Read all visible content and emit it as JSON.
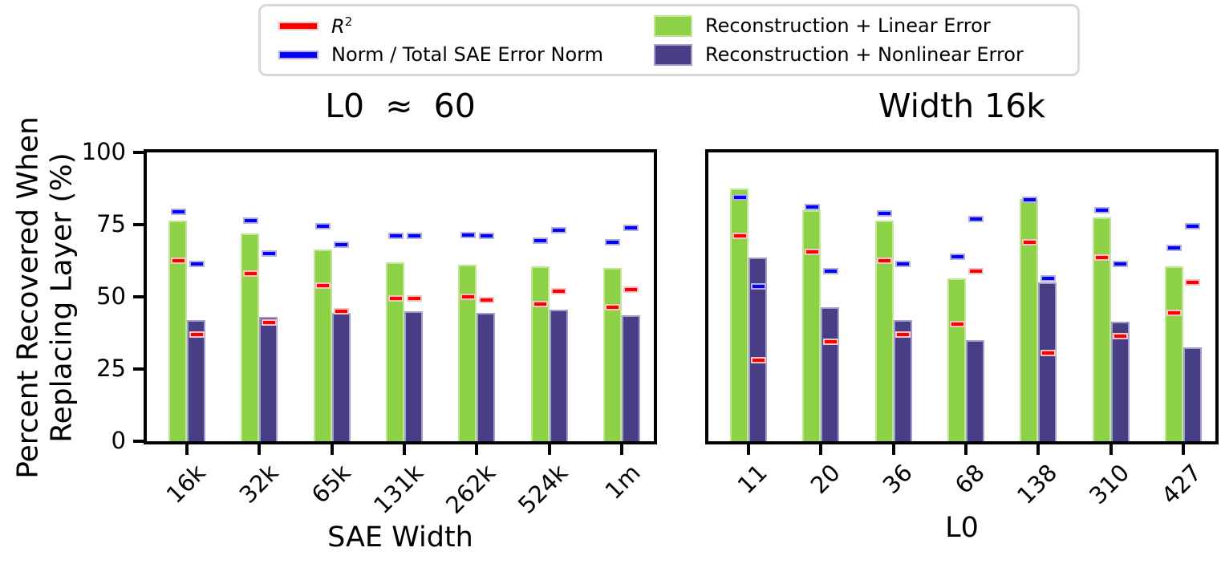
{
  "figure": {
    "ylabel_line1": "Percent Recovered When",
    "ylabel_line2": "Replacing Layer (%)"
  },
  "colors": {
    "linear_fill": "#8DD146",
    "linear_edge": "#C1E795",
    "nonlinear_fill": "#473E85",
    "nonlinear_edge": "#A29DCF",
    "r2": "#FC0000",
    "r2_edge": "#F6C2C2",
    "norm": "#0202F8",
    "norm_edge": "#B3AEE2",
    "legend_border": "#D8D8D8",
    "text": "#000000"
  },
  "legend": {
    "position": "top-center",
    "items": [
      {
        "key": "r2",
        "label": "R",
        "sup": "2",
        "italic": true,
        "swatch": "line",
        "color": "r2"
      },
      {
        "key": "norm",
        "label": "Norm / Total SAE Error Norm",
        "swatch": "line",
        "color": "norm"
      },
      {
        "key": "linear",
        "label": "Reconstruction + Linear Error",
        "swatch": "bar",
        "color": "linear"
      },
      {
        "key": "nonlinear",
        "label": "Reconstruction + Nonlinear Error",
        "swatch": "bar",
        "color": "nonlinear"
      }
    ]
  },
  "chart_data": [
    {
      "type": "bar",
      "title": "L0  ≈  60",
      "xlabel": "SAE Width",
      "ylabel": "Percent Recovered When Replacing Layer (%)",
      "categories": [
        "16k",
        "32k",
        "65k",
        "131k",
        "262k",
        "524k",
        "1m"
      ],
      "ylim": [
        0,
        100
      ],
      "yticks": [
        0,
        25,
        50,
        75,
        100
      ],
      "yticks_visible": true,
      "grid": false,
      "series": [
        {
          "name": "Reconstruction + Linear Error",
          "kind": "bar",
          "group": "linear",
          "values": [
            76.5,
            72,
            66.5,
            62,
            61,
            60.5,
            60
          ]
        },
        {
          "name": "Reconstruction + Nonlinear Error",
          "kind": "bar",
          "group": "nonlinear",
          "values": [
            42,
            43,
            44.5,
            45,
            44.5,
            45.5,
            43.5
          ]
        },
        {
          "name": "R²",
          "kind": "dash",
          "color": "r2",
          "group": "linear",
          "values": [
            62.5,
            58,
            54,
            49.5,
            50,
            47.5,
            46.5
          ]
        },
        {
          "name": "R²",
          "kind": "dash",
          "color": "r2",
          "group": "nonlinear",
          "values": [
            37,
            41,
            45,
            49.5,
            49,
            52,
            52.5
          ]
        },
        {
          "name": "Norm / Total SAE Error Norm",
          "kind": "dash",
          "color": "norm",
          "group": "linear",
          "values": [
            79.5,
            76.5,
            74.5,
            71,
            71.5,
            69.5,
            69
          ]
        },
        {
          "name": "Norm / Total SAE Error Norm",
          "kind": "dash",
          "color": "norm",
          "group": "nonlinear",
          "values": [
            61.5,
            65,
            68,
            71,
            71,
            73,
            74
          ]
        }
      ]
    },
    {
      "type": "bar",
      "title": "Width 16k",
      "xlabel": "L0",
      "ylabel": "Percent Recovered When Replacing Layer (%)",
      "categories": [
        "11",
        "20",
        "36",
        "68",
        "138",
        "310",
        "427"
      ],
      "ylim": [
        0,
        100
      ],
      "yticks": [
        0,
        25,
        50,
        75,
        100
      ],
      "yticks_visible": false,
      "grid": false,
      "series": [
        {
          "name": "Reconstruction + Linear Error",
          "kind": "bar",
          "group": "linear",
          "values": [
            87.5,
            80,
            76.5,
            56.5,
            84,
            77.5,
            60.5
          ]
        },
        {
          "name": "Reconstruction + Nonlinear Error",
          "kind": "bar",
          "group": "nonlinear",
          "values": [
            63.5,
            46.5,
            42,
            35,
            55,
            41.5,
            32.5
          ]
        },
        {
          "name": "R²",
          "kind": "dash",
          "color": "r2",
          "group": "linear",
          "values": [
            71,
            65.5,
            62.5,
            40.5,
            69,
            63.5,
            44.5
          ]
        },
        {
          "name": "R²",
          "kind": "dash",
          "color": "r2",
          "group": "nonlinear",
          "values": [
            28,
            34.5,
            37,
            59,
            30.5,
            36.5,
            55
          ]
        },
        {
          "name": "Norm / Total SAE Error Norm",
          "kind": "dash",
          "color": "norm",
          "group": "linear",
          "values": [
            84.5,
            81,
            79,
            64,
            83.5,
            80,
            67
          ]
        },
        {
          "name": "Norm / Total SAE Error Norm",
          "kind": "dash",
          "color": "norm",
          "group": "nonlinear",
          "values": [
            53.5,
            59,
            61.5,
            77,
            56.5,
            61.5,
            74.5
          ]
        }
      ]
    }
  ]
}
